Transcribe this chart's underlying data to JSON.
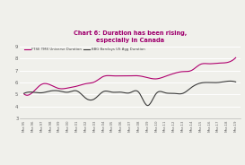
{
  "title_line1": "Chart 6: Duration has been rising,",
  "title_line2": "especially in Canada",
  "title_color": "#a0006e",
  "background_color": "#f0f0eb",
  "plot_bg_color": "#f0f0eb",
  "ylim": [
    3,
    9
  ],
  "yticks": [
    3,
    4,
    5,
    6,
    7,
    8,
    9
  ],
  "line1_label": "FTSE TMX Universe Duration",
  "line1_color": "#b0006e",
  "line2_label": "BBG Barclays US Agg Duration",
  "line2_color": "#3a3a3a",
  "xtick_labels": [
    "Mar-95",
    "Mar-96",
    "Mar-97",
    "Mar-98",
    "Mar-99",
    "Mar-00",
    "Mar-01",
    "Mar-02",
    "Mar-03",
    "Mar-04",
    "Mar-05",
    "Mar-06",
    "Mar-07",
    "Mar-08",
    "Mar-09",
    "Mar-10",
    "Mar-11",
    "Mar-12",
    "Mar-13",
    "Mar-14",
    "Mar-15",
    "Mar-16",
    "Mar-17",
    "Mar-18",
    "Mar-19"
  ],
  "line1_values": [
    5.05,
    5.2,
    5.85,
    5.8,
    5.5,
    5.55,
    5.7,
    5.9,
    6.05,
    6.5,
    6.55,
    6.55,
    6.55,
    6.55,
    6.4,
    6.3,
    6.5,
    6.75,
    6.9,
    7.0,
    7.5,
    7.55,
    7.6,
    7.65,
    8.05
  ],
  "line2_values": [
    5.1,
    5.2,
    5.15,
    5.3,
    5.3,
    5.2,
    5.3,
    4.7,
    4.65,
    5.25,
    5.2,
    5.2,
    5.15,
    5.2,
    4.1,
    5.1,
    5.15,
    5.1,
    5.1,
    5.6,
    5.95,
    6.0,
    6.0,
    6.1,
    6.05
  ]
}
